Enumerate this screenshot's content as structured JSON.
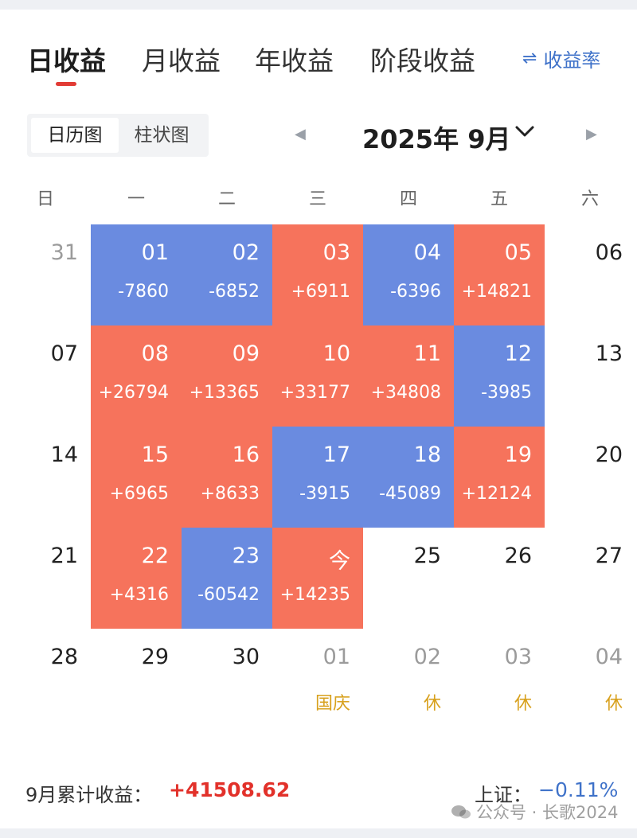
{
  "tabs": [
    {
      "label": "日收益",
      "active": true
    },
    {
      "label": "月收益",
      "active": false
    },
    {
      "label": "年收益",
      "active": false
    },
    {
      "label": "阶段收益",
      "active": false
    }
  ],
  "rate_link": {
    "icon": "swap-icon",
    "label": "收益率"
  },
  "view_toggle": [
    {
      "label": "日历图",
      "active": true
    },
    {
      "label": "柱状图",
      "active": false
    }
  ],
  "month_title": "2025年 9月",
  "weekdays": [
    "日",
    "一",
    "二",
    "三",
    "四",
    "五",
    "六"
  ],
  "colors": {
    "gain": "#f6735c",
    "loss": "#6a8be0",
    "holiday": "#d8a11e",
    "total": "#e2312a",
    "index": "#3f72c9"
  },
  "weeks": [
    [
      {
        "day": "31",
        "type": "muted"
      },
      {
        "day": "01",
        "value": "-7860",
        "type": "loss"
      },
      {
        "day": "02",
        "value": "-6852",
        "type": "loss"
      },
      {
        "day": "03",
        "value": "+6911",
        "type": "gain"
      },
      {
        "day": "04",
        "value": "-6396",
        "type": "loss"
      },
      {
        "day": "05",
        "value": "+14821",
        "type": "gain"
      },
      {
        "day": "06",
        "type": "plain"
      }
    ],
    [
      {
        "day": "07",
        "type": "plain"
      },
      {
        "day": "08",
        "value": "+26794",
        "type": "gain"
      },
      {
        "day": "09",
        "value": "+13365",
        "type": "gain"
      },
      {
        "day": "10",
        "value": "+33177",
        "type": "gain"
      },
      {
        "day": "11",
        "value": "+34808",
        "type": "gain"
      },
      {
        "day": "12",
        "value": "-3985",
        "type": "loss"
      },
      {
        "day": "13",
        "type": "plain"
      }
    ],
    [
      {
        "day": "14",
        "type": "plain"
      },
      {
        "day": "15",
        "value": "+6965",
        "type": "gain"
      },
      {
        "day": "16",
        "value": "+8633",
        "type": "gain"
      },
      {
        "day": "17",
        "value": "-3915",
        "type": "loss"
      },
      {
        "day": "18",
        "value": "-45089",
        "type": "loss"
      },
      {
        "day": "19",
        "value": "+12124",
        "type": "gain"
      },
      {
        "day": "20",
        "type": "plain"
      }
    ],
    [
      {
        "day": "21",
        "type": "plain"
      },
      {
        "day": "22",
        "value": "+4316",
        "type": "gain"
      },
      {
        "day": "23",
        "value": "-60542",
        "type": "loss"
      },
      {
        "day": "今",
        "value": "+14235",
        "type": "gain"
      },
      {
        "day": "25",
        "type": "plain"
      },
      {
        "day": "26",
        "type": "plain"
      },
      {
        "day": "27",
        "type": "plain"
      }
    ],
    [
      {
        "day": "28",
        "type": "plain"
      },
      {
        "day": "29",
        "type": "plain"
      },
      {
        "day": "30",
        "type": "plain"
      },
      {
        "day": "01",
        "type": "muted",
        "note": "国庆"
      },
      {
        "day": "02",
        "type": "muted",
        "note": "休"
      },
      {
        "day": "03",
        "type": "muted",
        "note": "休"
      },
      {
        "day": "04",
        "type": "muted",
        "note": "休"
      }
    ]
  ],
  "footer": {
    "total_label": "9月累计收益：",
    "total_value": "+41508.62",
    "index_label": "上证：",
    "index_value": "−0.11%"
  },
  "watermark": "公众号 · 长歌2024"
}
